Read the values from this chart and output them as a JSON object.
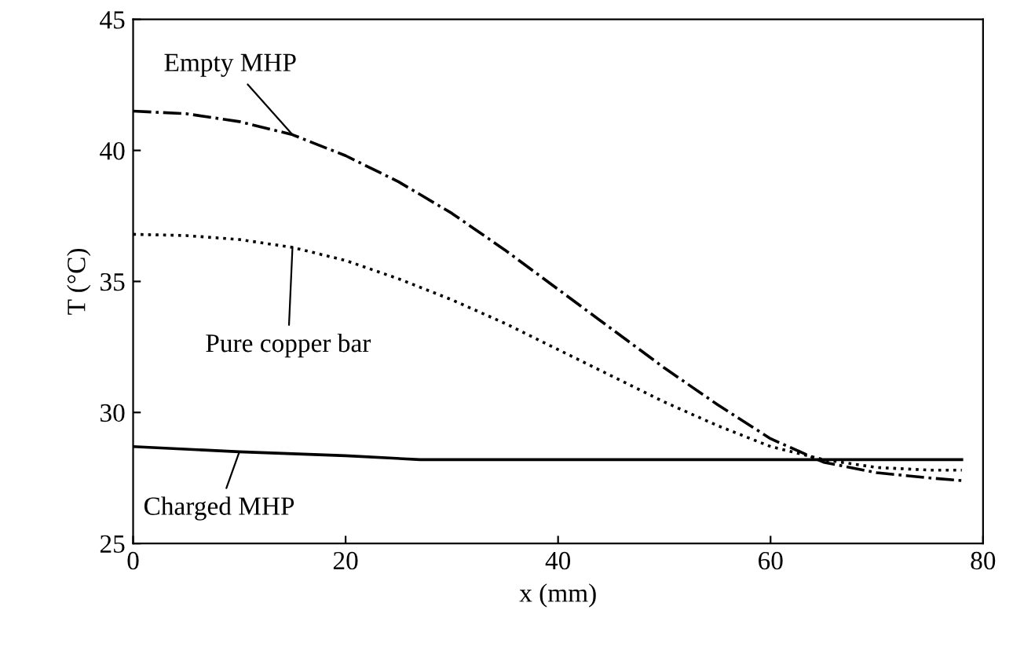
{
  "chart_data": {
    "type": "line",
    "xlabel": "x (mm)",
    "ylabel": "T (°C)",
    "xlim": [
      0,
      80
    ],
    "xticks": [
      0,
      20,
      40,
      60,
      80
    ],
    "ylim": [
      25,
      45
    ],
    "yticks": [
      25,
      30,
      35,
      40,
      45
    ],
    "grid": false,
    "marker": "none",
    "series": [
      {
        "name": "Empty MHP",
        "color": "#000000",
        "line_style": "dashdot",
        "x": [
          0,
          5,
          10,
          15,
          20,
          25,
          30,
          35,
          40,
          45,
          50,
          55,
          60,
          65,
          70,
          75,
          78
        ],
        "values": [
          41.5,
          41.4,
          41.1,
          40.6,
          39.8,
          38.8,
          37.6,
          36.2,
          34.7,
          33.2,
          31.7,
          30.3,
          29.0,
          28.1,
          27.7,
          27.5,
          27.4
        ]
      },
      {
        "name": "Pure copper bar",
        "color": "#000000",
        "line_style": "dotted",
        "x": [
          0,
          5,
          10,
          15,
          20,
          25,
          30,
          35,
          40,
          45,
          50,
          55,
          60,
          65,
          70,
          75,
          78
        ],
        "values": [
          36.8,
          36.75,
          36.6,
          36.3,
          35.8,
          35.1,
          34.3,
          33.4,
          32.4,
          31.4,
          30.4,
          29.5,
          28.7,
          28.2,
          27.9,
          27.8,
          27.8
        ]
      },
      {
        "name": "Charged MHP",
        "color": "#000000",
        "line_style": "solid",
        "x": [
          0,
          10,
          20,
          27,
          40,
          60,
          78
        ],
        "values": [
          28.7,
          28.5,
          28.35,
          28.2,
          28.2,
          28.2,
          28.2
        ]
      }
    ]
  }
}
